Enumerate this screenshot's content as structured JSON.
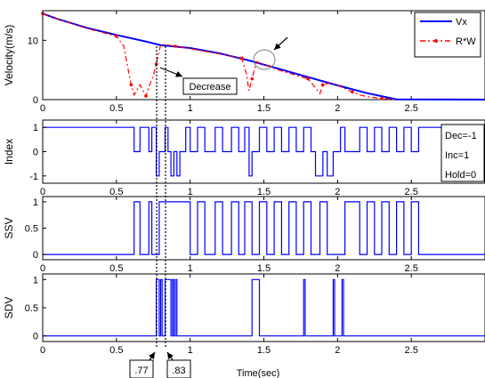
{
  "chart_data": [
    {
      "type": "line",
      "ylabel": "Velocity(m/s)",
      "xlim": [
        0,
        3
      ],
      "ylim": [
        0,
        15
      ],
      "xticks": [
        "0",
        "0.5",
        "1",
        "1.5",
        "2",
        "2.5"
      ],
      "yticks": [
        "0",
        "10"
      ],
      "series": [
        {
          "name": "Vx",
          "color": "#0000ff",
          "x": [
            0,
            0.1,
            0.3,
            0.5,
            0.7,
            0.8,
            1.0,
            1.2,
            1.4,
            1.6,
            1.8,
            2.0,
            2.2,
            2.4,
            3.0
          ],
          "y": [
            14.5,
            13.6,
            12.1,
            10.9,
            9.8,
            9.2,
            8.7,
            7.8,
            6.6,
            5.2,
            3.8,
            2.4,
            1.1,
            0.05,
            0
          ]
        },
        {
          "name": "R*W",
          "color": "#ff0000",
          "x": [
            0,
            0.1,
            0.3,
            0.5,
            0.55,
            0.58,
            0.6,
            0.62,
            0.66,
            0.7,
            0.73,
            0.75,
            0.77,
            0.8,
            0.85,
            0.9,
            1.0,
            1.2,
            1.35,
            1.38,
            1.4,
            1.42,
            1.45,
            1.6,
            1.8,
            1.85,
            1.88,
            1.9,
            1.95,
            2.0,
            2.1,
            2.15,
            2.2,
            2.3,
            2.4
          ],
          "y": [
            14.5,
            13.6,
            12.0,
            10.7,
            9.0,
            5.0,
            2.5,
            0.8,
            2.5,
            0.6,
            2.8,
            4.0,
            6.0,
            9.3,
            9.2,
            9.0,
            8.6,
            7.7,
            7.0,
            4.5,
            1.5,
            3.5,
            6.4,
            5.0,
            3.5,
            2.0,
            1.0,
            2.5,
            2.8,
            2.4,
            1.3,
            0.8,
            0.5,
            0.2,
            0.0
          ]
        }
      ],
      "legend": "top-right",
      "annotations": [
        "Decrease"
      ]
    },
    {
      "type": "line",
      "ylabel": "Index",
      "xlim": [
        0,
        3
      ],
      "ylim": [
        -1.3,
        1.3
      ],
      "xticks": [
        "0",
        "0.5",
        "1",
        "1.5",
        "2",
        "2.5"
      ],
      "yticks": [
        "-1",
        "0",
        "1"
      ],
      "series": [
        {
          "color": "#0000ff",
          "x": [
            0,
            0.62,
            0.62,
            0.66,
            0.66,
            0.72,
            0.72,
            0.74,
            0.74,
            0.77,
            0.77,
            0.79,
            0.79,
            0.83,
            0.83,
            0.85,
            0.85,
            0.87,
            0.87,
            0.89,
            0.89,
            0.91,
            0.91,
            0.93,
            0.93,
            0.97,
            0.97,
            1.0,
            1.0,
            1.05,
            1.05,
            1.1,
            1.1,
            1.17,
            1.17,
            1.22,
            1.22,
            1.28,
            1.28,
            1.33,
            1.33,
            1.37,
            1.37,
            1.4,
            1.4,
            1.42,
            1.42,
            1.47,
            1.47,
            1.52,
            1.52,
            1.57,
            1.57,
            1.62,
            1.62,
            1.67,
            1.67,
            1.72,
            1.72,
            1.77,
            1.77,
            1.82,
            1.82,
            1.85,
            1.85,
            1.9,
            1.9,
            1.93,
            1.93,
            1.97,
            1.97,
            2.02,
            2.02,
            2.05,
            2.05,
            2.15,
            2.15,
            2.2,
            2.2,
            2.25,
            2.25,
            2.3,
            2.3,
            2.35,
            2.35,
            2.4,
            2.4,
            2.45,
            2.45,
            2.5,
            2.5,
            2.55,
            2.55,
            3.0
          ],
          "y": [
            1,
            1,
            0,
            0,
            1,
            1,
            0,
            0,
            1,
            1,
            -1,
            -1,
            0,
            0,
            1,
            1,
            0,
            0,
            -1,
            -1,
            0,
            0,
            -1,
            -1,
            0,
            0,
            1,
            1,
            0,
            0,
            1,
            1,
            0,
            0,
            1,
            1,
            0,
            0,
            1,
            1,
            0,
            0,
            1,
            1,
            -1,
            -1,
            0,
            0,
            1,
            1,
            0,
            0,
            1,
            1,
            0,
            0,
            1,
            1,
            0,
            0,
            1,
            1,
            0,
            0,
            -1,
            -1,
            0,
            0,
            -1,
            -1,
            0,
            0,
            1,
            1,
            0,
            0,
            1,
            1,
            0,
            0,
            1,
            1,
            0,
            0,
            1,
            1,
            0,
            0,
            1,
            1,
            0,
            0,
            1,
            1
          ]
        }
      ],
      "legend_text": [
        "Dec=-1",
        "Inc=1",
        "Hold=0"
      ]
    },
    {
      "type": "line",
      "ylabel": "SSV",
      "xlim": [
        0,
        3
      ],
      "ylim": [
        -0.1,
        1.1
      ],
      "xticks": [
        "0",
        "0.5",
        "1",
        "1.5",
        "2",
        "2.5"
      ],
      "yticks": [
        "0",
        "0.5",
        "1"
      ],
      "series": [
        {
          "color": "#0000ff",
          "x": [
            0,
            0.62,
            0.62,
            0.66,
            0.66,
            0.72,
            0.72,
            0.74,
            0.74,
            0.79,
            0.79,
            0.83,
            0.83,
            1.0,
            1.0,
            1.05,
            1.05,
            1.1,
            1.1,
            1.17,
            1.17,
            1.22,
            1.22,
            1.28,
            1.28,
            1.33,
            1.33,
            1.37,
            1.37,
            1.42,
            1.42,
            1.47,
            1.47,
            1.52,
            1.52,
            1.57,
            1.57,
            1.62,
            1.62,
            1.67,
            1.67,
            1.72,
            1.72,
            1.77,
            1.77,
            1.82,
            1.82,
            1.88,
            1.88,
            1.93,
            1.93,
            2.05,
            2.05,
            2.15,
            2.15,
            2.2,
            2.2,
            2.25,
            2.25,
            2.3,
            2.3,
            2.35,
            2.35,
            2.4,
            2.4,
            2.45,
            2.45,
            2.5,
            2.5,
            2.55,
            2.55,
            3.0
          ],
          "y": [
            0,
            0,
            1,
            1,
            0,
            0,
            1,
            1,
            0,
            0,
            1,
            1,
            1,
            1,
            0,
            0,
            1,
            1,
            0,
            0,
            1,
            1,
            0,
            0,
            1,
            1,
            0,
            0,
            1,
            1,
            0,
            0,
            1,
            1,
            0,
            0,
            1,
            1,
            0,
            0,
            1,
            1,
            0,
            0,
            1,
            1,
            0,
            0,
            1,
            1,
            0,
            0,
            1,
            1,
            0,
            0,
            1,
            1,
            0,
            0,
            1,
            1,
            0,
            0,
            1,
            1,
            0,
            0,
            1,
            1,
            0,
            0
          ]
        }
      ]
    },
    {
      "type": "line",
      "ylabel": "SDV",
      "xlabel": "Time(sec)",
      "xlim": [
        0,
        3
      ],
      "ylim": [
        -0.1,
        1.1
      ],
      "xticks": [
        "0",
        "0.5",
        "1",
        "1.5",
        "2",
        "2.5"
      ],
      "yticks": [
        "0",
        "0.5",
        "1"
      ],
      "series": [
        {
          "color": "#0000ff",
          "x": [
            0,
            0.77,
            0.77,
            0.79,
            0.79,
            0.8,
            0.8,
            0.81,
            0.81,
            0.83,
            0.83,
            0.87,
            0.87,
            0.88,
            0.88,
            0.89,
            0.89,
            0.9,
            0.9,
            0.91,
            0.91,
            0.92,
            0.92,
            1.42,
            1.42,
            1.47,
            1.47,
            1.77,
            1.77,
            1.78,
            1.78,
            1.97,
            1.97,
            1.98,
            1.98,
            2.03,
            2.03,
            2.04,
            2.04,
            3.0
          ],
          "y": [
            0,
            0,
            1,
            1,
            0,
            0,
            1,
            1,
            0,
            0,
            1,
            1,
            0,
            0,
            1,
            1,
            0,
            0,
            1,
            1,
            0,
            0,
            0,
            0,
            1,
            1,
            0,
            0,
            1,
            1,
            0,
            0,
            1,
            1,
            0,
            0,
            1,
            1,
            0,
            0
          ]
        }
      ],
      "annotations": [
        ".77",
        ".83"
      ]
    }
  ],
  "labels": {
    "legend_vx": "Vx",
    "legend_rw": "R*W",
    "decrease": "Decrease",
    "mark_77": ".77",
    "mark_83": ".83",
    "time_label": "Time(sec)",
    "dec": "Dec=-1",
    "inc": "Inc=1",
    "hold": "Hold=0"
  }
}
